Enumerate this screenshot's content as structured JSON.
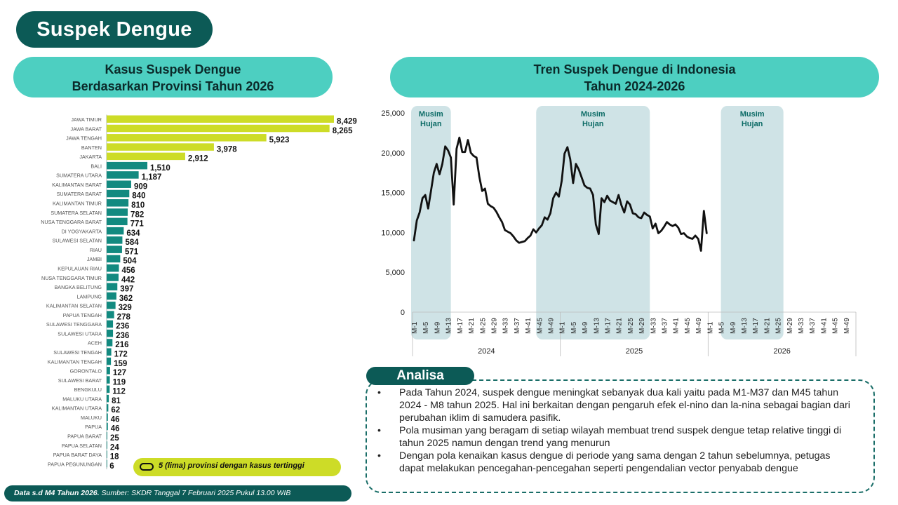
{
  "page_title": "Suspek Dengue",
  "left_panel": {
    "title_line1": "Kasus Suspek Dengue",
    "title_line2": "Berdasarkan Provinsi Tahun 2026"
  },
  "right_panel": {
    "title_line1": "Tren Suspek Dengue di Indonesia",
    "title_line2": "Tahun 2024-2026"
  },
  "legend": {
    "text": "5 (lima) provinsi dengan kasus tertinggi"
  },
  "footer": {
    "bold": "Data s.d M4 Tahun 2026.",
    "source": " Sumber: SKDR Tanggal 7 Februari 2025 Pukul 13.00 WIB"
  },
  "analysis": {
    "heading": "Analisa",
    "bullets": [
      "Pada Tahun 2024, suspek dengue meningkat sebanyak dua kali yaitu pada M1-M37 dan M45 tahun 2024 - M8 tahun 2025. Hal ini berkaitan dengan pengaruh efek el-nino dan la-nina sebagai bagian dari perubahan iklim  di samudera pasifik.",
      "Pola musiman yang beragam di setiap wilayah membuat trend suspek dengue tetap relative tinggi di tahun 2025 namun dengan trend yang menurun",
      "Dengan pola kenaikan kasus dengue di periode yang sama dengan 2 tahun sebelumnya, petugas dapat melakukan pencegahan-pencegahan seperti pengendalian vector penyabab dengue"
    ]
  },
  "colors": {
    "top5": "#cddc27",
    "other": "#128a80",
    "dark": "#0c5a56",
    "accent": "#4dcfc1",
    "band": "#cfe3e6"
  },
  "chart_data": [
    {
      "type": "bar",
      "orientation": "horizontal",
      "highlight_top": 5,
      "categories": [
        "JAWA TIMUR",
        "JAWA BARAT",
        "JAWA TENGAH",
        "BANTEN",
        "JAKARTA",
        "BALI",
        "SUMATERA UTARA",
        "KALIMANTAN BARAT",
        "SUMATERA BARAT",
        "KALIMANTAN TIMUR",
        "SUMATERA SELATAN",
        "NUSA TENGGARA BARAT",
        "DI YOGYAKARTA",
        "SULAWESI SELATAN",
        "RIAU",
        "JAMBI",
        "KEPULAUAN RIAU",
        "NUSA TENGGARA TIMUR",
        "BANGKA BELITUNG",
        "LAMPUNG",
        "KALIMANTAN SELATAN",
        "PAPUA TENGAH",
        "SULAWESI TENGGARA",
        "SULAWESI UTARA",
        "ACEH",
        "SULAWESI TENGAH",
        "KALIMANTAN TENGAH",
        "GORONTALO",
        "SULAWESI BARAT",
        "BENGKULU",
        "MALUKU UTARA",
        "KALIMANTAN UTARA",
        "MALUKU",
        "PAPUA",
        "PAPUA BARAT",
        "PAPUA SELATAN",
        "PAPUA BARAT DAYA",
        "PAPUA PEGUNUNGAN"
      ],
      "values": [
        8429,
        8265,
        5923,
        3978,
        2912,
        1510,
        1187,
        909,
        840,
        810,
        782,
        771,
        634,
        584,
        571,
        504,
        456,
        442,
        397,
        362,
        329,
        278,
        236,
        236,
        216,
        172,
        159,
        127,
        119,
        112,
        81,
        62,
        46,
        46,
        25,
        24,
        18,
        6
      ],
      "labels": [
        "8,429",
        "8,265",
        "5,923",
        "3,978",
        "2,912",
        "1,510",
        "1,187",
        "909",
        "840",
        "810",
        "782",
        "771",
        "634",
        "584",
        "571",
        "504",
        "456",
        "442",
        "397",
        "362",
        "329",
        "278",
        "236",
        "236",
        "216",
        "172",
        "159",
        "127",
        "119",
        "112",
        "81",
        "62",
        "46",
        "46",
        "25",
        "24",
        "18",
        "6"
      ]
    },
    {
      "type": "line",
      "yticks": [
        "25,000",
        "20,000",
        "15,000",
        "10,000",
        "5,000",
        "0"
      ],
      "ylim": [
        0,
        25000
      ],
      "week_ticks": [
        "M-1",
        "M-5",
        "M-9",
        "M-13",
        "M-17",
        "M-21",
        "M-25",
        "M-29",
        "M-33",
        "M-37",
        "M-41",
        "M-45",
        "M-49"
      ],
      "years": [
        "2024",
        "2025",
        "2026"
      ],
      "weeks_per_year": 52,
      "bands": [
        {
          "label_line1": "Musim",
          "label_line2": "Hujan",
          "from_week": 1,
          "to_week": 13
        },
        {
          "label_line1": "Musim",
          "label_line2": "Hujan",
          "from_week": 45,
          "to_week": 83
        },
        {
          "label_line1": "Musim",
          "label_line2": "Hujan",
          "from_week": 110,
          "to_week": 130
        }
      ],
      "series": [
        {
          "values": [
            9000,
            11500,
            12500,
            14300,
            14700,
            13000,
            15200,
            17500,
            18600,
            17300,
            18600,
            20800,
            20300,
            19400,
            13500,
            20500,
            21900,
            20100,
            20100,
            21600,
            20000,
            19600,
            19400,
            17000,
            15200,
            15500,
            13600,
            13300,
            13100,
            12600,
            11900,
            11300,
            10300,
            10100,
            9900,
            9500,
            9000,
            8700,
            8800,
            8900,
            9300,
            9600,
            10400,
            10000,
            10500,
            10900,
            11900,
            11600,
            12400,
            14300,
            15000,
            14500,
            16500,
            19900,
            20700,
            19200,
            16200,
            18600,
            17900,
            16900,
            15900,
            15600,
            15500,
            14700,
            11000,
            9800,
            14300,
            13800,
            14600,
            14000,
            13800,
            13600,
            14700,
            13400,
            12500,
            13900,
            13500,
            12400,
            12300,
            11900,
            11800,
            12500,
            12200,
            12000,
            10500,
            11100,
            9900,
            10200,
            10700,
            11300,
            11000,
            10800,
            11000,
            10600,
            9800,
            9900,
            9500,
            9300,
            9200,
            9600,
            9200,
            7700,
            12700,
            9900
          ]
        }
      ]
    }
  ]
}
